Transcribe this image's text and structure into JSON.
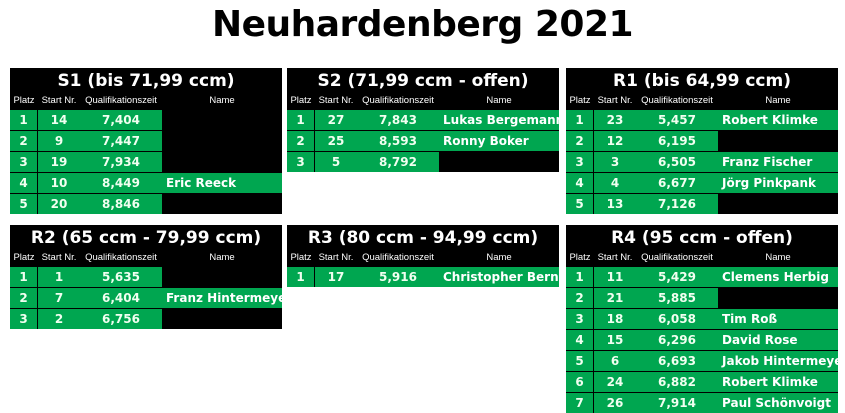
{
  "title": "Neuhardenberg 2021",
  "colors": {
    "green": "#00a650",
    "black": "#000000"
  },
  "headers": {
    "platz": "Platz",
    "start": "Start Nr.",
    "zeit": "Qualifikationszeit",
    "name": "Name"
  },
  "tables": [
    {
      "title": "S1 (bis 71,99 ccm)",
      "rows": [
        [
          "1",
          "14",
          "7,404",
          ""
        ],
        [
          "2",
          "9",
          "7,447",
          ""
        ],
        [
          "3",
          "19",
          "7,934",
          ""
        ],
        [
          "4",
          "10",
          "8,449",
          "Eric Reeck"
        ],
        [
          "5",
          "20",
          "8,846",
          ""
        ]
      ]
    },
    {
      "title": "S2 (71,99 ccm - offen)",
      "rows": [
        [
          "1",
          "27",
          "7,843",
          "Lukas Bergemann"
        ],
        [
          "2",
          "25",
          "8,593",
          "Ronny Boker"
        ],
        [
          "3",
          "5",
          "8,792",
          ""
        ]
      ]
    },
    {
      "title": "R1 (bis 64,99 ccm)",
      "rows": [
        [
          "1",
          "23",
          "5,457",
          "Robert Klimke"
        ],
        [
          "2",
          "12",
          "6,195",
          ""
        ],
        [
          "3",
          "3",
          "6,505",
          "Franz Fischer"
        ],
        [
          "4",
          "4",
          "6,677",
          "Jörg Pinkpank"
        ],
        [
          "5",
          "13",
          "7,126",
          ""
        ]
      ]
    },
    {
      "title": "R2 (65 ccm - 79,99 ccm)",
      "rows": [
        [
          "1",
          "1",
          "5,635",
          ""
        ],
        [
          "2",
          "7",
          "6,404",
          "Franz Hintermeyer"
        ],
        [
          "3",
          "2",
          "6,756",
          ""
        ]
      ]
    },
    {
      "title": "R3 (80 ccm - 94,99 ccm)",
      "rows": [
        [
          "1",
          "17",
          "5,916",
          "Christopher Berndt"
        ]
      ]
    },
    {
      "title": "R4 (95 ccm - offen)",
      "rows": [
        [
          "1",
          "11",
          "5,429",
          "Clemens Herbig"
        ],
        [
          "2",
          "21",
          "5,885",
          ""
        ],
        [
          "3",
          "18",
          "6,058",
          "Tim Roß"
        ],
        [
          "4",
          "15",
          "6,296",
          "David Rose"
        ],
        [
          "5",
          "6",
          "6,693",
          "Jakob Hintermeyer"
        ],
        [
          "6",
          "24",
          "6,882",
          "Robert Klimke"
        ],
        [
          "7",
          "26",
          "7,914",
          "Paul Schönvoigt"
        ]
      ]
    }
  ]
}
